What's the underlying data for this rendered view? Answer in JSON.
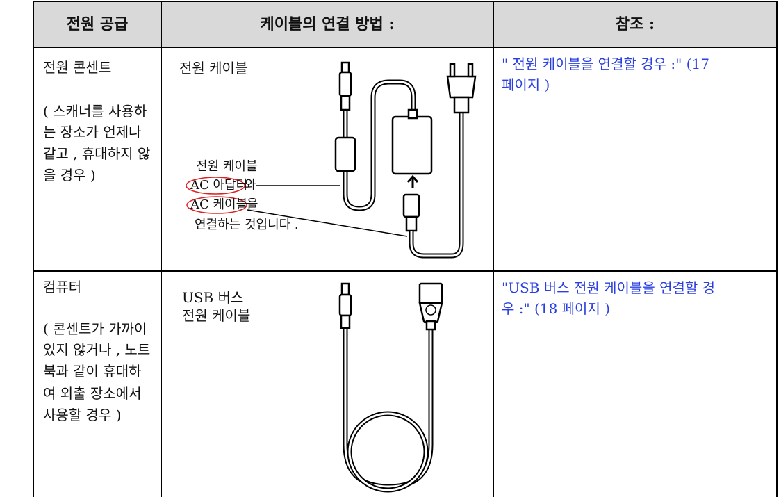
{
  "table": {
    "headers": [
      "전원 공급",
      "케이블의 연결 방법 :",
      "참조 :"
    ],
    "rows": [
      {
        "source": "전원 콘센트",
        "note": [
          "( 스캐너를 사용하",
          "는 장소가 언제나",
          "같고 , 휴대하지 않",
          "을 경우 )"
        ],
        "cable": [
          "전원 케이블"
        ],
        "caption": [
          "전원 케이블",
          "AC 아답터",
          "와",
          "AC 케이블",
          "을",
          "연결하는 것입니다 ."
        ],
        "reference": [
          "\" 전원 케이블을 연결할 경우 :\" (17",
          "페이지 )"
        ]
      },
      {
        "source": "컴퓨터",
        "note": [
          "( 콘센트가 가까이",
          "있지 않거나 , 노트",
          "북과 같이 휴대하",
          "여 외출 장소에서",
          "사용할 경우 )"
        ],
        "cable": [
          "USB 버스",
          "전원 케이블"
        ],
        "reference": [
          "\"USB 버스 전원 케이블을 연결할 경",
          "우 :\" (18 페이지 )"
        ]
      }
    ]
  }
}
